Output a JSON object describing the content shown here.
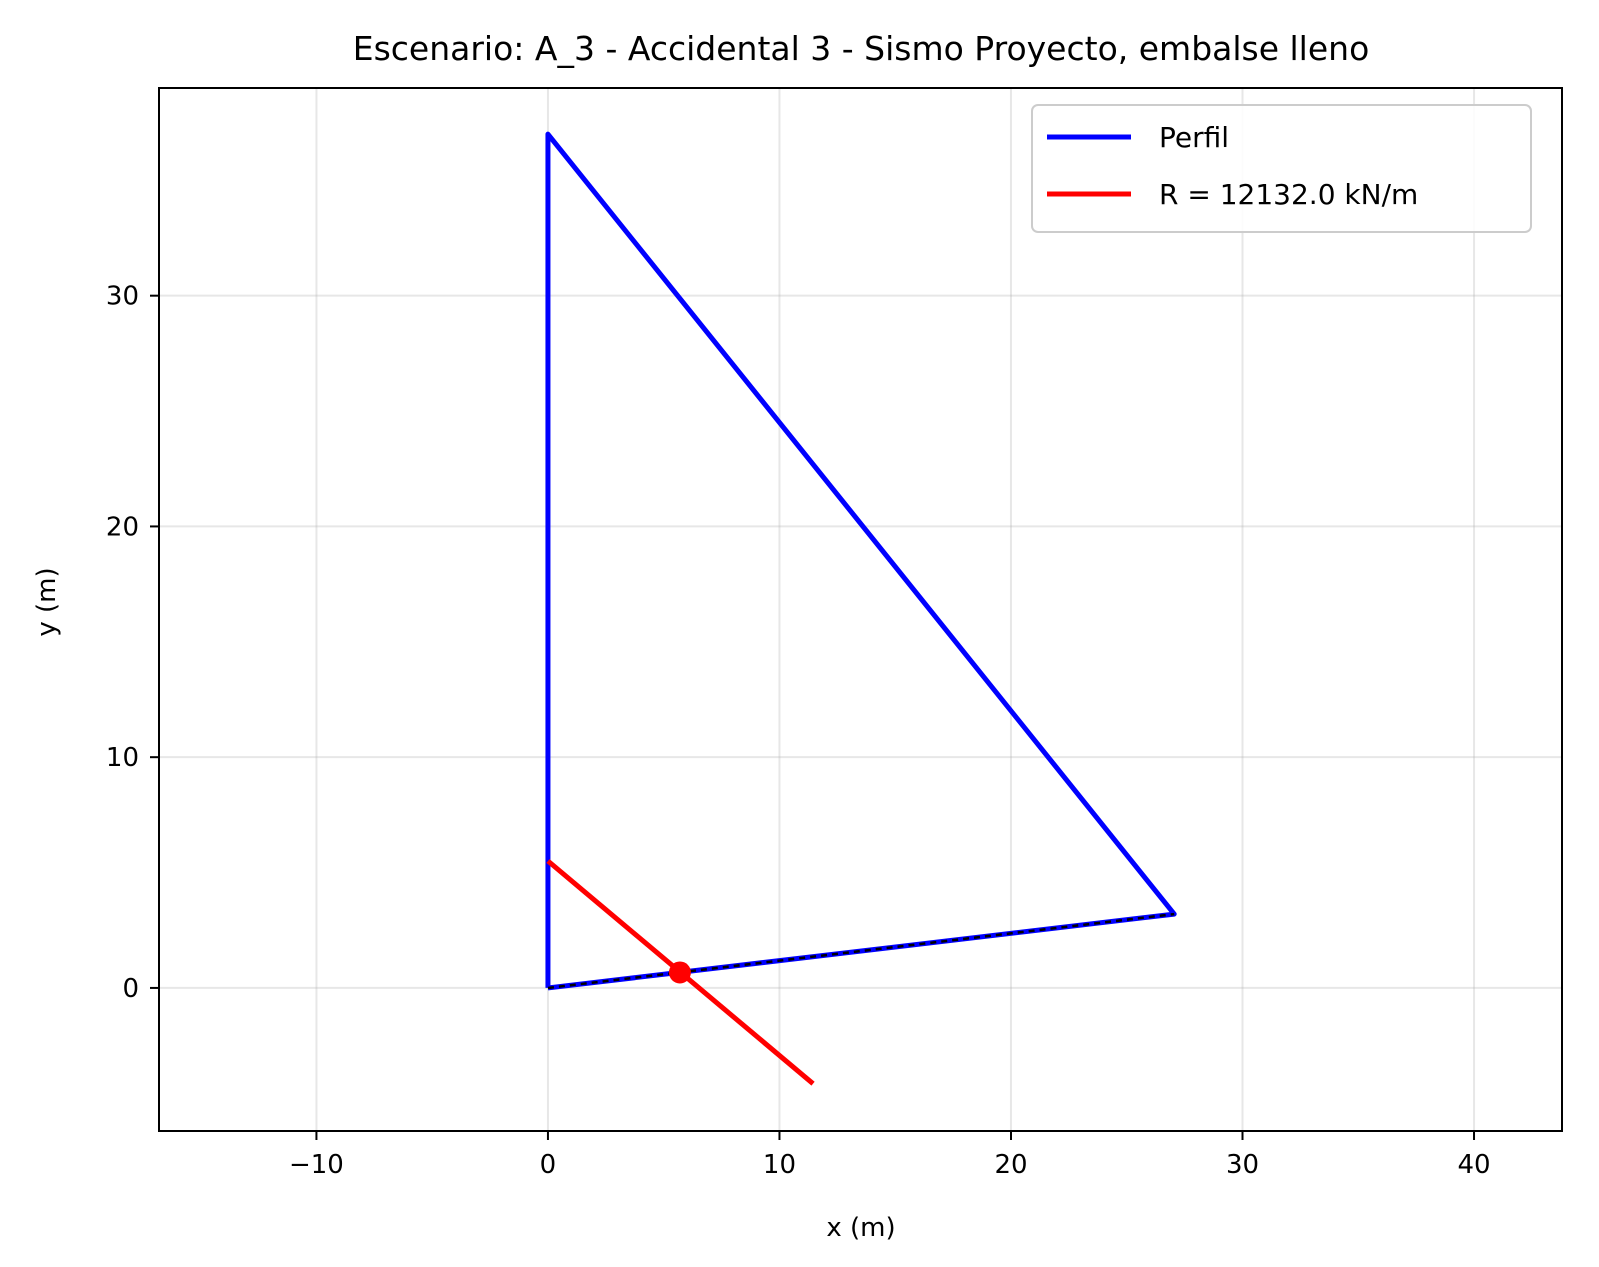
{
  "chart_data": {
    "type": "line",
    "title": "Escenario: A_3 - Accidental 3 - Sismo Proyecto, embalse lleno",
    "xlabel": "x (m)",
    "ylabel": "y (m)",
    "xlim": [
      -16.8,
      43.8
    ],
    "ylim": [
      -6.2,
      39.0
    ],
    "xticks": [
      -10,
      0,
      10,
      20,
      30,
      40
    ],
    "xtick_labels": [
      "−10",
      "0",
      "10",
      "20",
      "30",
      "40"
    ],
    "yticks": [
      0,
      10,
      20,
      30
    ],
    "ytick_labels": [
      "0",
      "10",
      "20",
      "30"
    ],
    "grid": true,
    "legend_position": "top-right",
    "series": [
      {
        "name": "Perfil",
        "color": "#0000ff",
        "x": [
          0,
          0,
          27.05,
          0
        ],
        "y": [
          0,
          37.0,
          3.2,
          0
        ]
      },
      {
        "name": "R = 12132.0 kN/m",
        "color": "#ff0000",
        "x": [
          0,
          11.45
        ],
        "y": [
          5.5,
          -4.15
        ]
      }
    ],
    "base_line": {
      "color": "#000000",
      "style": "dashed",
      "x": [
        0,
        27.05
      ],
      "y": [
        0,
        3.2
      ]
    },
    "marker": {
      "color": "#ff0000",
      "x": [
        5.7
      ],
      "y": [
        0.67
      ]
    }
  }
}
